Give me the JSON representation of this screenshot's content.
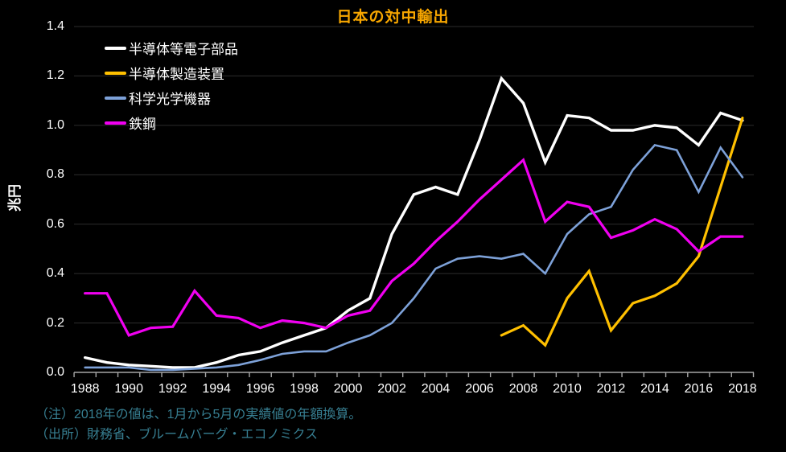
{
  "title": "日本の対中輸出",
  "y_axis_label": "兆円",
  "notes": [
    "（注）2018年の値は、1月から5月の実績値の年額換算。",
    "（出所）財務省、ブルームバーグ・エコノミクス"
  ],
  "colors": {
    "background": "#000000",
    "title": "#F7A600",
    "axis": "#A6A6A6",
    "grid": "#2D2D2D",
    "tick_text": "#FFFFFF",
    "notes_text": "#377F92"
  },
  "chart_data": {
    "type": "line",
    "title": "日本の対中輸出",
    "ylabel": "兆円",
    "ylim": [
      0,
      1.4
    ],
    "y_tick_step": 0.2,
    "y_tick_labels": [
      "0.0",
      "0.2",
      "0.4",
      "0.6",
      "0.8",
      "1.0",
      "1.2",
      "1.4"
    ],
    "x": [
      1988,
      1989,
      1990,
      1991,
      1992,
      1993,
      1994,
      1995,
      1996,
      1997,
      1998,
      1999,
      2000,
      2001,
      2002,
      2003,
      2004,
      2005,
      2006,
      2007,
      2008,
      2009,
      2010,
      2011,
      2012,
      2013,
      2014,
      2015,
      2016,
      2017,
      2018
    ],
    "x_tick_labels": [
      1988,
      1990,
      1992,
      1994,
      1996,
      1998,
      2000,
      2002,
      2004,
      2006,
      2008,
      2010,
      2012,
      2014,
      2016,
      2018
    ],
    "grid": "horizontal",
    "legend_position": "upper-left",
    "series": [
      {
        "key": "semiconductor-electronic-parts",
        "name": "半導体等電子部品",
        "color": "#FFFFFF",
        "width": 3.4,
        "values": [
          0.06,
          0.04,
          0.03,
          0.025,
          0.02,
          0.02,
          0.04,
          0.07,
          0.085,
          0.12,
          0.15,
          0.18,
          0.25,
          0.3,
          0.56,
          0.72,
          0.75,
          0.72,
          0.94,
          1.19,
          1.09,
          0.85,
          1.04,
          1.03,
          0.98,
          0.98,
          1.0,
          0.99,
          0.92,
          1.05,
          1.02
        ]
      },
      {
        "key": "semiconductor-manufacturing-equipment",
        "name": "半導体製造装置",
        "color": "#FFC000",
        "width": 3.2,
        "values": [
          null,
          null,
          null,
          null,
          null,
          null,
          null,
          null,
          null,
          null,
          null,
          null,
          null,
          null,
          null,
          null,
          null,
          null,
          null,
          0.15,
          0.19,
          0.11,
          0.3,
          0.41,
          0.17,
          0.28,
          0.31,
          0.36,
          0.47,
          0.75,
          1.03
        ]
      },
      {
        "key": "scientific-optical-instruments",
        "name": "科学光学機器",
        "color": "#7DA1D8",
        "width": 2.6,
        "values": [
          0.02,
          0.02,
          0.02,
          0.01,
          0.01,
          0.015,
          0.02,
          0.03,
          0.05,
          0.075,
          0.085,
          0.085,
          0.12,
          0.15,
          0.2,
          0.3,
          0.42,
          0.46,
          0.47,
          0.46,
          0.48,
          0.4,
          0.56,
          0.64,
          0.67,
          0.82,
          0.92,
          0.9,
          0.73,
          0.91,
          0.79
        ]
      },
      {
        "key": "steel",
        "name": "鉄鋼",
        "color": "#F000F0",
        "width": 3.2,
        "values": [
          0.32,
          0.32,
          0.15,
          0.18,
          0.185,
          0.33,
          0.23,
          0.22,
          0.18,
          0.21,
          0.2,
          0.18,
          0.23,
          0.25,
          0.37,
          0.44,
          0.53,
          0.61,
          0.7,
          0.78,
          0.86,
          0.61,
          0.69,
          0.67,
          0.545,
          0.575,
          0.62,
          0.58,
          0.49,
          0.55,
          0.55
        ]
      }
    ]
  }
}
